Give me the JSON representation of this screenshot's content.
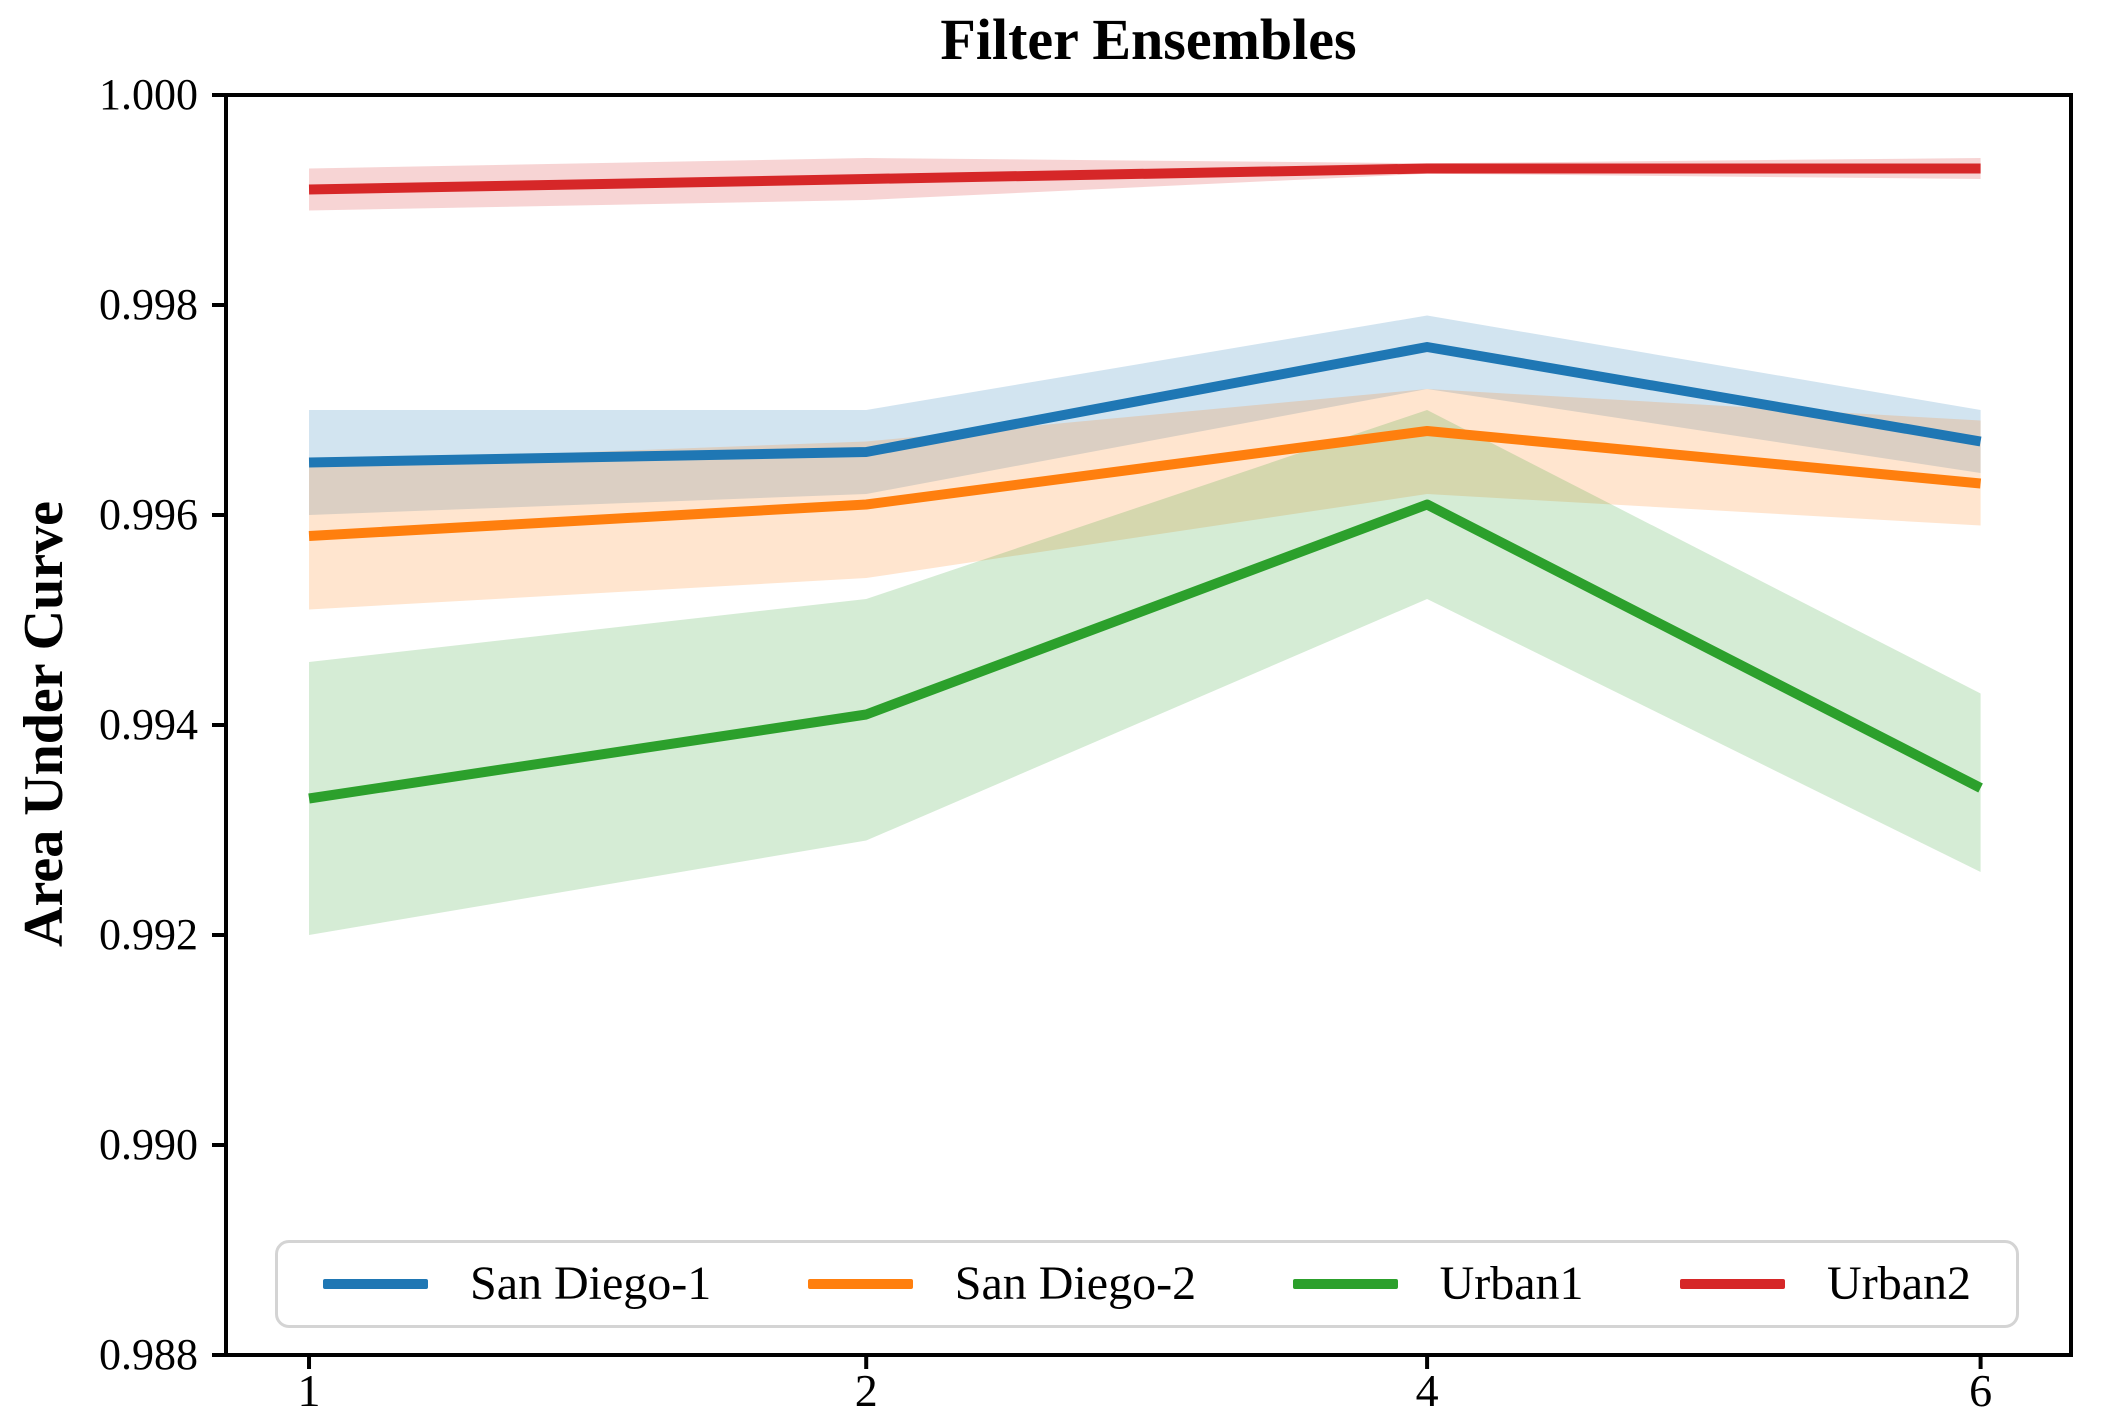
{
  "chart_data": {
    "type": "line",
    "title": "Filter Ensembles",
    "xlabel": "",
    "ylabel": "Area Under Curve",
    "categories": [
      "1",
      "2",
      "4",
      "6"
    ],
    "ylim": [
      0.988,
      1.0
    ],
    "ytick_labels": [
      "1.000",
      "0.998",
      "0.996",
      "0.994",
      "0.992",
      "0.990",
      "0.988"
    ],
    "grid": false,
    "legend_position": "lower center",
    "band_opacity": 0.2,
    "series": [
      {
        "name": "San Diego-1",
        "color": "#1f77b4",
        "values": [
          0.9965,
          0.9966,
          0.9976,
          0.9967
        ],
        "band_lower": [
          0.996,
          0.9962,
          0.9972,
          0.9964
        ],
        "band_upper": [
          0.997,
          0.997,
          0.9979,
          0.997
        ]
      },
      {
        "name": "San Diego-2",
        "color": "#ff7f0e",
        "values": [
          0.9958,
          0.9961,
          0.9968,
          0.9963
        ],
        "band_lower": [
          0.9951,
          0.9954,
          0.9962,
          0.9959
        ],
        "band_upper": [
          0.9965,
          0.9967,
          0.9972,
          0.9969
        ]
      },
      {
        "name": "Urban1",
        "color": "#2ca02c",
        "values": [
          0.9933,
          0.9941,
          0.9961,
          0.9934
        ],
        "band_lower": [
          0.992,
          0.9929,
          0.9952,
          0.9926
        ],
        "band_upper": [
          0.9946,
          0.9952,
          0.997,
          0.9943
        ]
      },
      {
        "name": "Urban2",
        "color": "#d62728",
        "values": [
          0.9991,
          0.9992,
          0.9993,
          0.9993
        ],
        "band_lower": [
          0.9989,
          0.999,
          0.99925,
          0.9992
        ],
        "band_upper": [
          0.9993,
          0.9994,
          0.99935,
          0.9994
        ]
      }
    ]
  }
}
